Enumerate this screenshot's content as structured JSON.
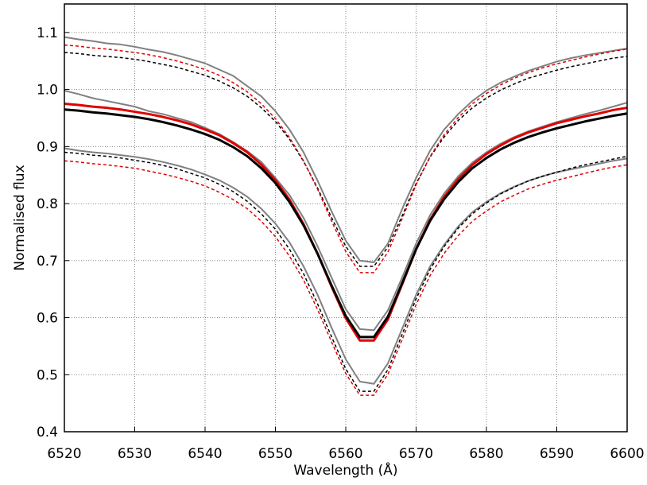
{
  "chart_data": {
    "type": "line",
    "xlabel": "Wavelength (Å)",
    "ylabel": "Normalised flux",
    "xlim": [
      6520,
      6600
    ],
    "ylim": [
      0.4,
      1.15
    ],
    "xticks": [
      6520,
      6530,
      6540,
      6550,
      6560,
      6570,
      6580,
      6590,
      6600
    ],
    "yticks": [
      0.4,
      0.5,
      0.6,
      0.7,
      0.8,
      0.9,
      {
        "value": 1,
        "label": "1.0"
      },
      1.1
    ],
    "grid": true,
    "x": [
      6520,
      6522,
      6524,
      6526,
      6528,
      6530,
      6532,
      6534,
      6536,
      6538,
      6540,
      6542,
      6544,
      6546,
      6548,
      6550,
      6552,
      6554,
      6556,
      6558,
      6560,
      6562,
      6564,
      6566,
      6568,
      6570,
      6572,
      6574,
      6576,
      6578,
      6580,
      6582,
      6584,
      6586,
      6588,
      6590,
      6592,
      6594,
      6596,
      6598,
      6600
    ],
    "series": [
      {
        "color": "#808080",
        "dashed": false,
        "width": 2,
        "values": [
          1.092,
          1.088,
          1.085,
          1.081,
          1.079,
          1.075,
          1.07,
          1.066,
          1.06,
          1.053,
          1.046,
          1.035,
          1.024,
          1.006,
          0.988,
          0.962,
          0.93,
          0.89,
          0.84,
          0.786,
          0.735,
          0.7,
          0.697,
          0.73,
          0.79,
          0.845,
          0.893,
          0.93,
          0.957,
          0.98,
          0.998,
          1.012,
          1.023,
          1.033,
          1.041,
          1.049,
          1.055,
          1.06,
          1.064,
          1.068,
          1.072
        ]
      },
      {
        "color": "#808080",
        "dashed": false,
        "width": 2,
        "values": [
          0.998,
          0.992,
          0.985,
          0.98,
          0.975,
          0.97,
          0.962,
          0.957,
          0.95,
          0.943,
          0.933,
          0.922,
          0.908,
          0.892,
          0.873,
          0.845,
          0.815,
          0.775,
          0.725,
          0.67,
          0.615,
          0.58,
          0.578,
          0.613,
          0.67,
          0.73,
          0.78,
          0.818,
          0.848,
          0.872,
          0.89,
          0.905,
          0.917,
          0.927,
          0.935,
          0.943,
          0.95,
          0.957,
          0.963,
          0.97,
          0.977
        ]
      },
      {
        "color": "#808080",
        "dashed": false,
        "width": 2,
        "values": [
          0.897,
          0.893,
          0.89,
          0.888,
          0.885,
          0.882,
          0.878,
          0.873,
          0.867,
          0.86,
          0.851,
          0.841,
          0.828,
          0.812,
          0.791,
          0.765,
          0.732,
          0.69,
          0.64,
          0.582,
          0.527,
          0.488,
          0.484,
          0.52,
          0.58,
          0.64,
          0.69,
          0.728,
          0.76,
          0.785,
          0.803,
          0.818,
          0.83,
          0.84,
          0.848,
          0.855,
          0.86,
          0.865,
          0.87,
          0.875,
          0.879
        ]
      },
      {
        "color": "#000000",
        "dashed": true,
        "width": 1.5,
        "values": [
          1.065,
          1.063,
          1.06,
          1.058,
          1.056,
          1.053,
          1.049,
          1.044,
          1.039,
          1.032,
          1.025,
          1.015,
          1.003,
          0.988,
          0.968,
          0.944,
          0.913,
          0.874,
          0.827,
          0.775,
          0.725,
          0.69,
          0.69,
          0.724,
          0.778,
          0.835,
          0.882,
          0.917,
          0.946,
          0.968,
          0.985,
          0.999,
          1.01,
          1.02,
          1.027,
          1.034,
          1.04,
          1.045,
          1.05,
          1.055,
          1.058
        ]
      },
      {
        "color": "#e00000",
        "dashed": true,
        "width": 1.5,
        "values": [
          1.078,
          1.076,
          1.073,
          1.071,
          1.068,
          1.065,
          1.061,
          1.056,
          1.05,
          1.043,
          1.035,
          1.025,
          1.012,
          0.996,
          0.975,
          0.949,
          0.916,
          0.875,
          0.825,
          0.769,
          0.716,
          0.679,
          0.679,
          0.715,
          0.773,
          0.833,
          0.883,
          0.921,
          0.951,
          0.975,
          0.993,
          1.008,
          1.02,
          1.03,
          1.038,
          1.045,
          1.051,
          1.057,
          1.062,
          1.067,
          1.071
        ]
      },
      {
        "color": "#e00000",
        "dashed": false,
        "width": 3,
        "values": [
          0.975,
          0.973,
          0.97,
          0.968,
          0.965,
          0.961,
          0.957,
          0.952,
          0.946,
          0.939,
          0.93,
          0.92,
          0.906,
          0.89,
          0.868,
          0.841,
          0.807,
          0.764,
          0.712,
          0.654,
          0.599,
          0.56,
          0.56,
          0.597,
          0.658,
          0.72,
          0.772,
          0.812,
          0.843,
          0.868,
          0.887,
          0.902,
          0.915,
          0.925,
          0.933,
          0.941,
          0.947,
          0.953,
          0.958,
          0.964,
          0.968
        ]
      },
      {
        "color": "#000000",
        "dashed": false,
        "width": 3,
        "values": [
          0.965,
          0.963,
          0.96,
          0.958,
          0.955,
          0.952,
          0.948,
          0.943,
          0.937,
          0.93,
          0.922,
          0.912,
          0.899,
          0.883,
          0.862,
          0.836,
          0.803,
          0.762,
          0.712,
          0.656,
          0.603,
          0.566,
          0.566,
          0.602,
          0.66,
          0.72,
          0.77,
          0.808,
          0.838,
          0.862,
          0.88,
          0.895,
          0.907,
          0.917,
          0.925,
          0.932,
          0.938,
          0.944,
          0.949,
          0.954,
          0.958
        ]
      },
      {
        "color": "#000000",
        "dashed": true,
        "width": 1.5,
        "values": [
          0.89,
          0.888,
          0.885,
          0.883,
          0.88,
          0.876,
          0.872,
          0.867,
          0.861,
          0.853,
          0.845,
          0.834,
          0.821,
          0.804,
          0.782,
          0.755,
          0.72,
          0.677,
          0.624,
          0.566,
          0.51,
          0.471,
          0.471,
          0.509,
          0.57,
          0.633,
          0.685,
          0.725,
          0.757,
          0.782,
          0.801,
          0.817,
          0.829,
          0.84,
          0.848,
          0.855,
          0.862,
          0.868,
          0.873,
          0.878,
          0.883
        ]
      },
      {
        "color": "#e00000",
        "dashed": true,
        "width": 1.5,
        "values": [
          0.875,
          0.873,
          0.87,
          0.868,
          0.865,
          0.862,
          0.857,
          0.852,
          0.846,
          0.839,
          0.831,
          0.82,
          0.807,
          0.791,
          0.769,
          0.742,
          0.708,
          0.666,
          0.614,
          0.557,
          0.502,
          0.464,
          0.464,
          0.501,
          0.561,
          0.623,
          0.674,
          0.713,
          0.744,
          0.769,
          0.787,
          0.803,
          0.815,
          0.826,
          0.834,
          0.841,
          0.847,
          0.853,
          0.859,
          0.864,
          0.868
        ]
      }
    ]
  }
}
